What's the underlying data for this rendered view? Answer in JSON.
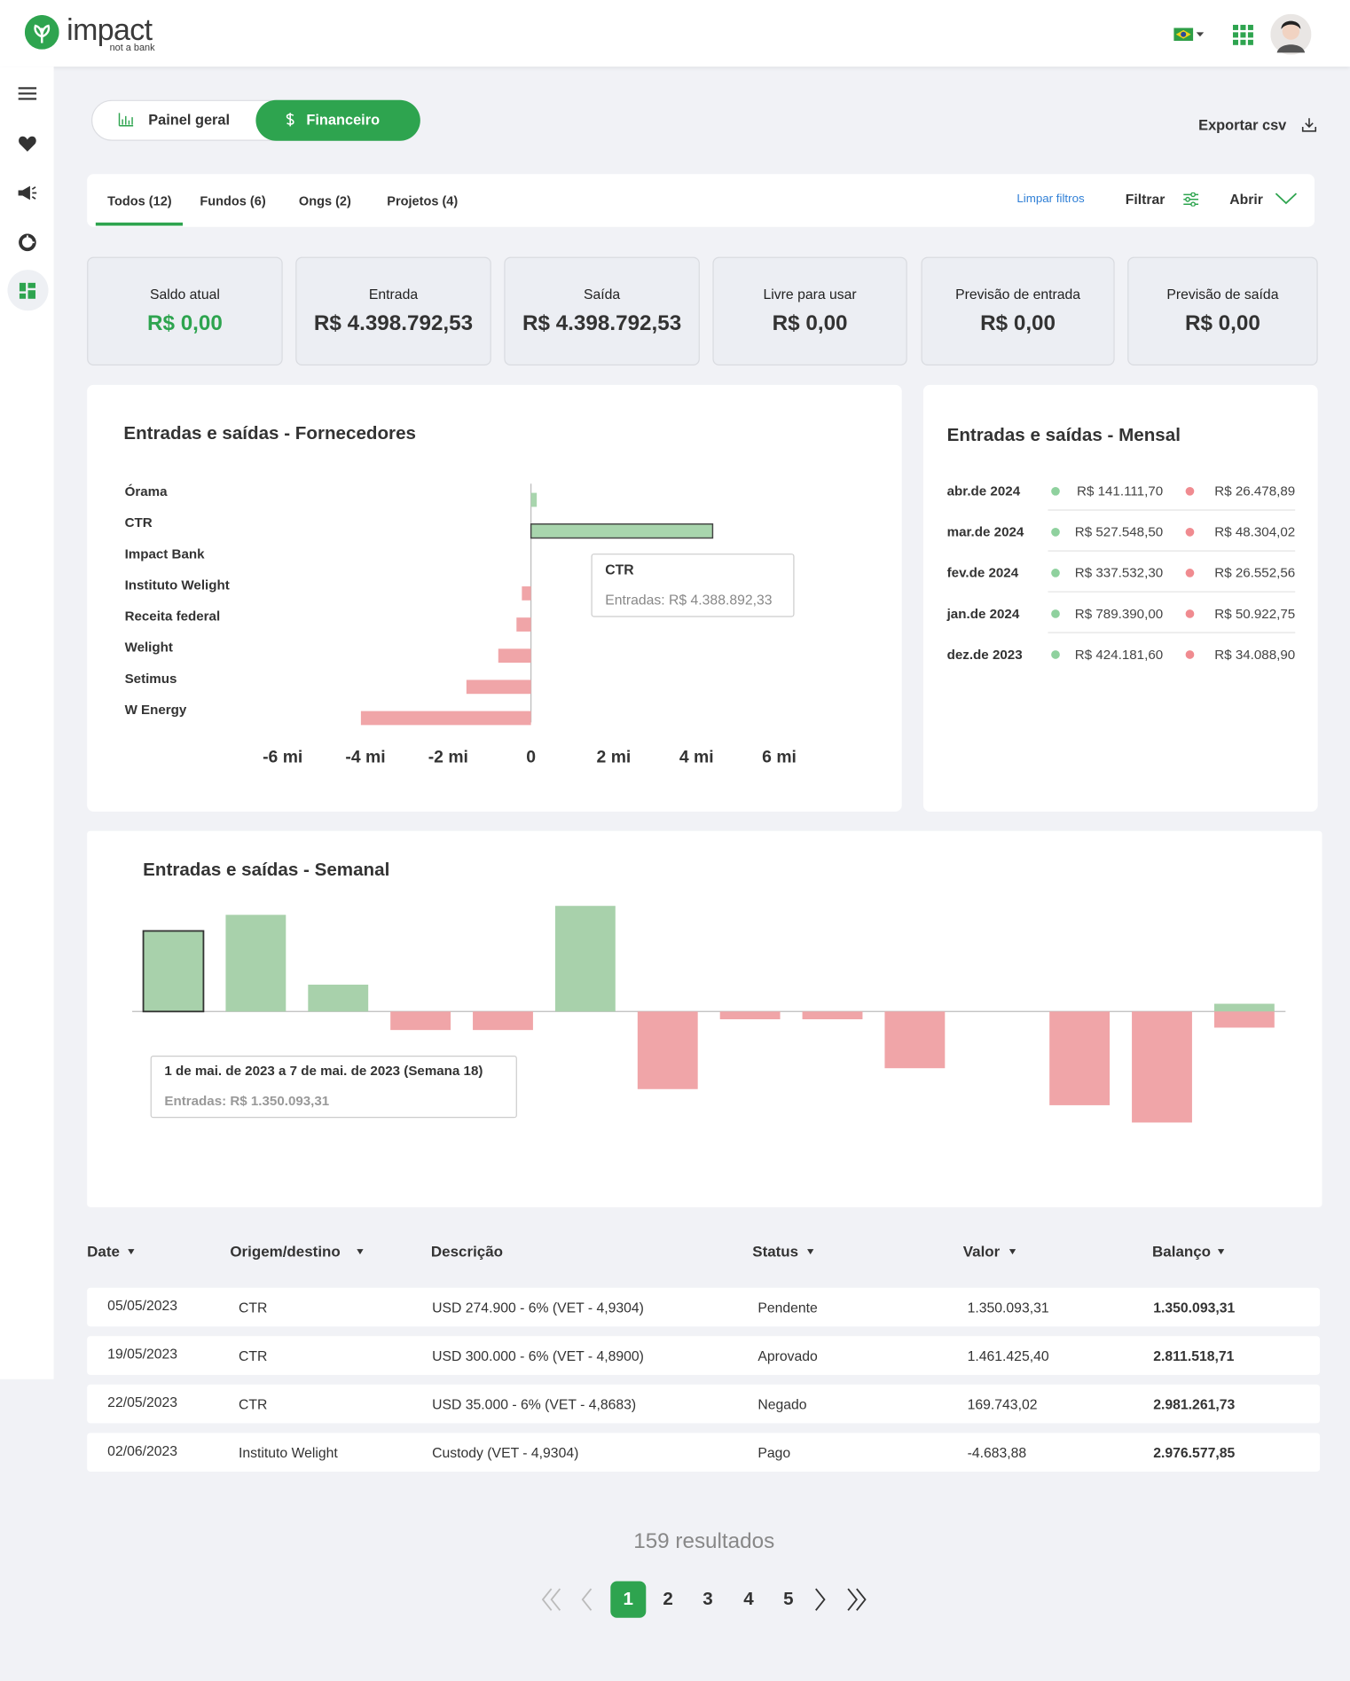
{
  "header": {
    "logo": "impact",
    "tagline": "not a bank"
  },
  "view_tabs": [
    "Painel geral",
    "Financeiro"
  ],
  "export": "Exportar csv",
  "filter_tabs": [
    "Todos (12)",
    "Fundos (6)",
    "Ongs (2)",
    "Projetos (4)"
  ],
  "filter_actions": {
    "clear": "Limpar filtros",
    "filter": "Filtrar",
    "open": "Abrir"
  },
  "cards": [
    {
      "label": "Saldo atual",
      "value": "R$ 0,00"
    },
    {
      "label": "Entrada",
      "value": "R$ 4.398.792,53"
    },
    {
      "label": "Saída",
      "value": "R$ 4.398.792,53"
    },
    {
      "label": "Livre para usar",
      "value": "R$ 0,00"
    },
    {
      "label": "Previsão de entrada",
      "value": "R$ 0,00"
    },
    {
      "label": "Previsão de saída",
      "value": "R$ 0,00"
    }
  ],
  "chart_data": [
    {
      "type": "bar",
      "orientation": "horizontal",
      "title": "Entradas e saídas - Fornecedores",
      "categories": [
        "Órama",
        "CTR",
        "Impact Bank",
        "Instituto Welight",
        "Receita federal",
        "Welight",
        "Setimus",
        "W Energy"
      ],
      "values": [
        0.14,
        4.39,
        0,
        -0.22,
        -0.35,
        -0.79,
        -1.56,
        -4.11
      ],
      "positive_color": "#a8d5ad",
      "negative_color": "#f0a5a8",
      "xlim": [
        -7,
        7
      ],
      "xticks": [
        {
          "value": -6,
          "label": "-6 mi"
        },
        {
          "value": -4,
          "label": "-4 mi"
        },
        {
          "value": -2,
          "label": "-2 mi"
        },
        0,
        {
          "value": 2,
          "label": "2 mi"
        },
        {
          "value": 4,
          "label": "4 mi"
        },
        {
          "value": 6,
          "label": "6 mi"
        }
      ],
      "tooltip": {
        "title": "CTR",
        "text": "Entradas: R$ 4.388.892,33"
      }
    },
    {
      "type": "bar",
      "title": "Entradas e saídas - Semanal",
      "series": [
        {
          "color": "#a8d1ab",
          "values": [
            1350093.31,
            1620000,
            450000,
            0,
            0,
            1770000,
            0,
            0,
            0,
            0,
            0,
            0,
            0,
            130000
          ]
        },
        {
          "color": "#f0a5a8",
          "values": [
            0,
            0,
            0,
            -310000,
            -310000,
            0,
            -1300000,
            -130000,
            -130000,
            -950000,
            0,
            -1570000,
            -1860000,
            -270000
          ]
        }
      ],
      "ylim": [
        -2900000,
        1900000
      ],
      "tooltip": {
        "title": "1 de mai. de 2023 a 7 de mai. de 2023 (Semana 18)",
        "text": "Entradas: R$ 1.350.093,31"
      }
    }
  ],
  "monthly": {
    "title": "Entradas e saídas - Mensal",
    "rows": [
      {
        "month": "abr.de 2024",
        "in": "R$ 141.111,70",
        "out": "R$ 26.478,89"
      },
      {
        "month": "mar.de 2024",
        "in": "R$ 527.548,50",
        "out": "R$ 48.304,02"
      },
      {
        "month": "fev.de 2024",
        "in": "R$ 337.532,30",
        "out": "R$ 26.552,56"
      },
      {
        "month": "jan.de 2024",
        "in": "R$ 789.390,00",
        "out": "R$ 50.922,75"
      },
      {
        "month": "dez.de 2023",
        "in": "R$ 424.181,60",
        "out": "R$ 34.088,90"
      }
    ]
  },
  "table": {
    "columns": [
      "Date",
      "Origem/destino",
      "Descrição",
      "Status",
      "Valor",
      "Balanço"
    ],
    "rows": [
      [
        "05/05/2023",
        "CTR",
        "USD 274.900 - 6% (VET - 4,9304)",
        "Pendente",
        "1.350.093,31",
        "1.350.093,31"
      ],
      [
        "19/05/2023",
        "CTR",
        "USD 300.000 - 6% (VET - 4,8900)",
        "Aprovado",
        "1.461.425,40",
        "2.811.518,71"
      ],
      [
        "22/05/2023",
        "CTR",
        "USD 35.000 - 6% (VET - 4,8683)",
        "Negado",
        "169.743,02",
        "2.981.261,73"
      ],
      [
        "02/06/2023",
        "Instituto Welight",
        "Custody (VET - 4,9304)",
        "Pago",
        "-4.683,88",
        "2.976.577,85"
      ]
    ]
  },
  "pagination": {
    "results": "159 resultados",
    "pages": [
      1,
      2,
      3,
      4,
      5
    ]
  }
}
